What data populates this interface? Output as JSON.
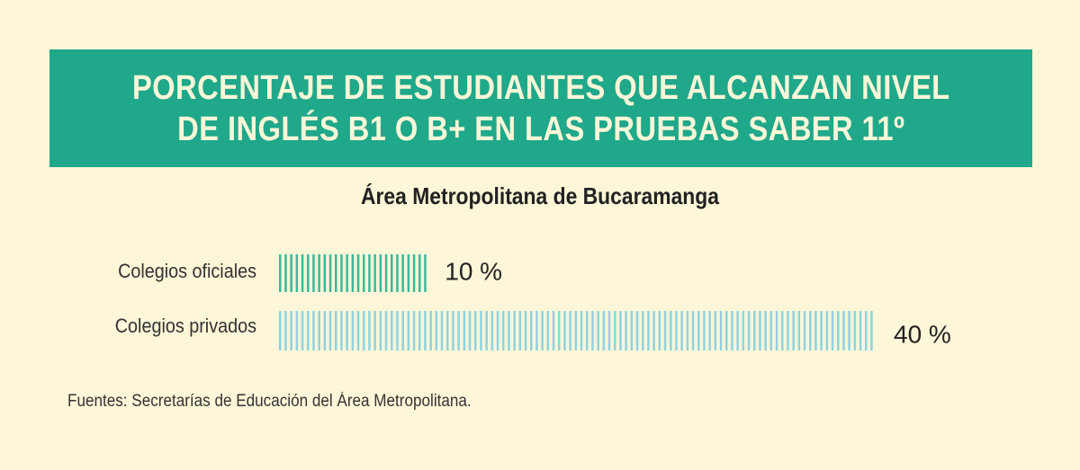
{
  "title_lines": [
    "PORCENTAJE DE ESTUDIANTES QUE ALCANZAN NIVEL",
    "DE INGLÉS B1 O B+ EN LAS PRUEBAS SABER 11º"
  ],
  "subtitle": "Área Metropolitana de Bucaramanga",
  "source": "Fuentes: Secretarías de Educación del Área Metropolitana.",
  "colors": {
    "background": "#fdf6d8",
    "title_band": "#1fa88a",
    "title_text": "#fdf6d8",
    "bar_official": "#3bb89a",
    "bar_private": "#8fd3e0",
    "text": "#222222"
  },
  "chart_data": {
    "type": "bar",
    "orientation": "horizontal",
    "categories": [
      "Colegios oficiales",
      "Colegios privados"
    ],
    "values": [
      10,
      40
    ],
    "value_labels": [
      "10 %",
      "40 %"
    ],
    "unit": "%",
    "xlim": [
      0,
      40
    ],
    "grid": false,
    "title": "PORCENTAJE DE ESTUDIANTES QUE ALCANZAN NIVEL DE INGLÉS B1 O B+ EN LAS PRUEBAS SABER 11º",
    "subtitle": "Área Metropolitana de Bucaramanga"
  }
}
